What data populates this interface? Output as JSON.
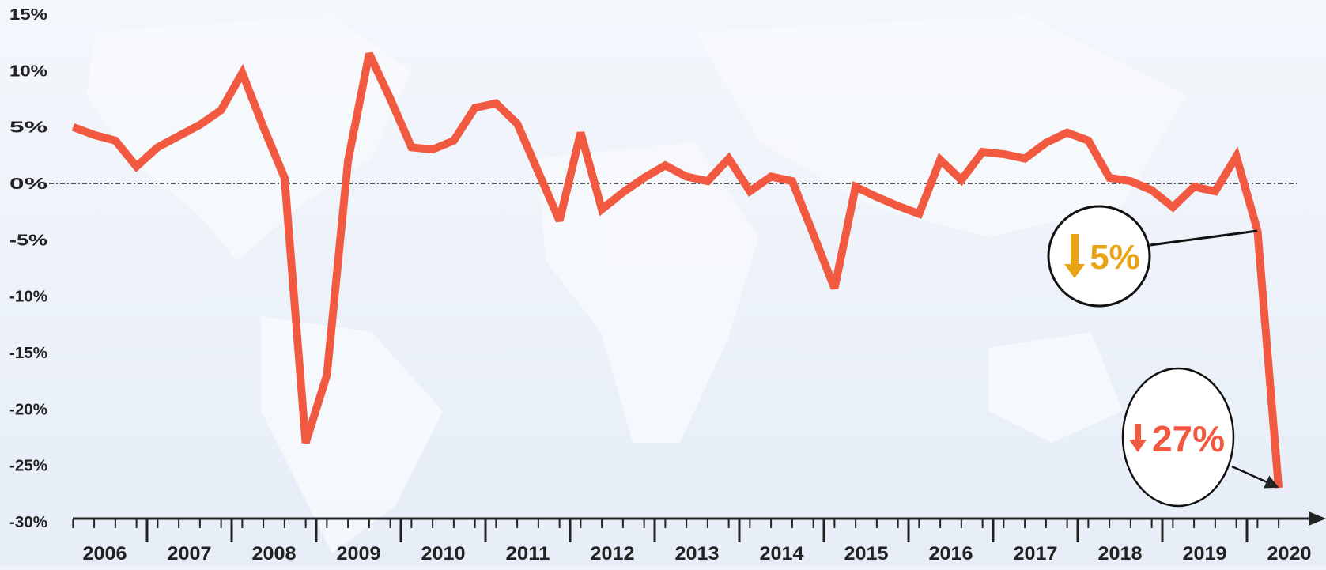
{
  "chart_data": {
    "type": "line",
    "x": [
      2006.125,
      2006.375,
      2006.625,
      2006.875,
      2007.125,
      2007.375,
      2007.625,
      2007.875,
      2008.125,
      2008.375,
      2008.625,
      2008.875,
      2009.125,
      2009.375,
      2009.625,
      2009.875,
      2010.125,
      2010.375,
      2010.625,
      2010.875,
      2011.125,
      2011.375,
      2011.625,
      2011.875,
      2012.125,
      2012.375,
      2012.625,
      2012.875,
      2013.125,
      2013.375,
      2013.625,
      2013.875,
      2014.125,
      2014.375,
      2014.625,
      2014.875,
      2015.125,
      2015.375,
      2015.625,
      2015.875,
      2016.125,
      2016.375,
      2016.625,
      2016.875,
      2017.125,
      2017.375,
      2017.625,
      2017.875,
      2018.125,
      2018.375,
      2018.625,
      2018.875,
      2019.125,
      2019.375,
      2019.625,
      2019.875,
      2020.125,
      2020.375
    ],
    "values": [
      5,
      4.3,
      3.8,
      1.5,
      3.2,
      4.2,
      5.2,
      6.5,
      9.8,
      5,
      0.5,
      -23,
      -17,
      2,
      11.5,
      7.5,
      3.2,
      3,
      3.8,
      6.7,
      7.1,
      5.3,
      1,
      -3.3,
      4.5,
      -2.3,
      -0.8,
      0.5,
      1.6,
      0.6,
      0.2,
      2.2,
      -0.7,
      0.6,
      0.2,
      -4.5,
      -9.3,
      -0.3,
      -1.2,
      -2,
      -2.7,
      2.1,
      0.3,
      2.8,
      2.6,
      2.2,
      3.6,
      4.5,
      3.8,
      0.5,
      0.2,
      -0.6,
      -2.1,
      -0.3,
      -0.7,
      2.4,
      -4.2,
      -27
    ],
    "color": "#f15a40",
    "xlim": [
      2006,
      2020.75
    ],
    "xticks": [
      {
        "value": 2006.5,
        "label": "2006"
      },
      {
        "value": 2007.5,
        "label": "2007"
      },
      {
        "value": 2008.5,
        "label": "2008"
      },
      {
        "value": 2009.5,
        "label": "2009"
      },
      {
        "value": 2010.5,
        "label": "2010"
      },
      {
        "value": 2011.5,
        "label": "2011"
      },
      {
        "value": 2012.5,
        "label": "2012"
      },
      {
        "value": 2013.5,
        "label": "2013"
      },
      {
        "value": 2014.5,
        "label": "2014"
      },
      {
        "value": 2015.5,
        "label": "2015"
      },
      {
        "value": 2016.5,
        "label": "2016"
      },
      {
        "value": 2017.5,
        "label": "2017"
      },
      {
        "value": 2018.5,
        "label": "2018"
      },
      {
        "value": 2019.5,
        "label": "2019"
      },
      {
        "value": 2020.5,
        "label": "2020"
      }
    ],
    "ylim": [
      -30,
      15
    ],
    "yticks": [
      {
        "value": 15,
        "label": "15%"
      },
      {
        "value": 10,
        "label": "10%"
      },
      {
        "value": 5,
        "label": "5%"
      },
      {
        "value": 0,
        "label": "0%"
      },
      {
        "value": -5,
        "label": "-5%"
      },
      {
        "value": -10,
        "label": "-10%"
      },
      {
        "value": -15,
        "label": "-15%"
      },
      {
        "value": -20,
        "label": "-20%"
      },
      {
        "value": -25,
        "label": "-25%"
      },
      {
        "value": -30,
        "label": "-30%"
      }
    ],
    "annotations": [
      {
        "text": "5%",
        "color": "#e8a317"
      },
      {
        "text": "27%",
        "color": "#f15a40"
      }
    ]
  }
}
